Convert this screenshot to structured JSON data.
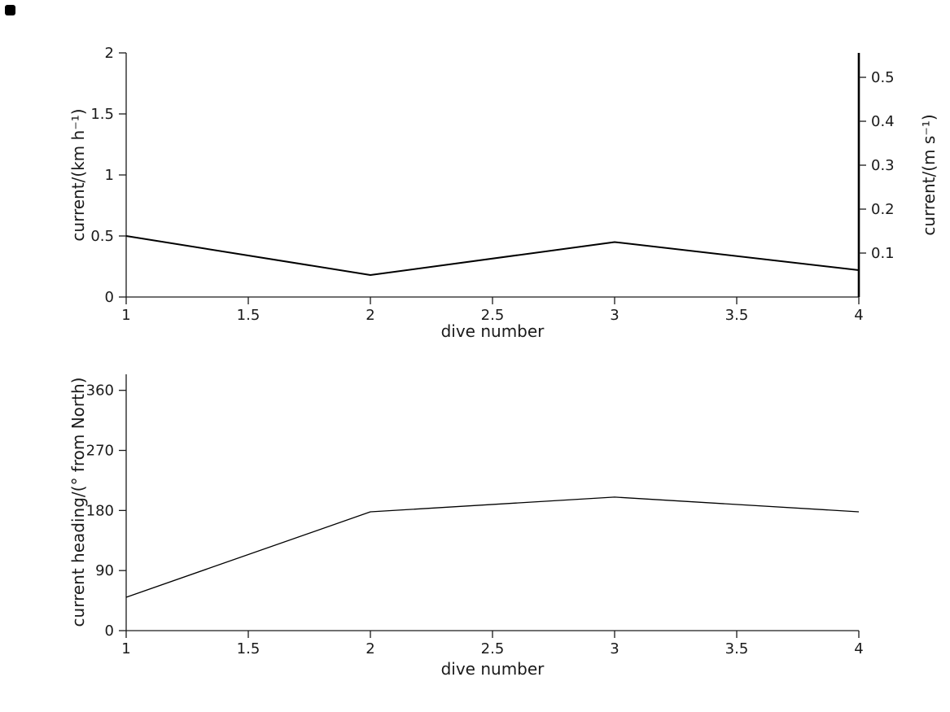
{
  "figure": {
    "background": "#ffffff",
    "text_color": "#1a1a1a",
    "axis_color": "#1a1a1a"
  },
  "chart_data": [
    {
      "type": "line",
      "title": "",
      "xlabel": "dive number",
      "ylabel": "current/(km h⁻¹)",
      "ylabel_right": "current/(m s⁻¹)",
      "x": [
        1,
        2,
        3,
        4
      ],
      "values": [
        0.5,
        0.18,
        0.45,
        0.22
      ],
      "values_right_axis_m_s": [
        0.14,
        0.05,
        0.13,
        0.06
      ],
      "xlim": [
        1,
        4
      ],
      "ylim": [
        0,
        2
      ],
      "ylim_right": [
        0,
        0.5556
      ],
      "xticks": [
        1,
        1.5,
        2,
        2.5,
        3,
        3.5,
        4
      ],
      "yticks": [
        0,
        0.5,
        1,
        1.5,
        2
      ],
      "yticks_right": [
        0.1,
        0.2,
        0.3,
        0.4,
        0.5
      ],
      "grid": false,
      "line_color": "#000000"
    },
    {
      "type": "line",
      "title": "",
      "xlabel": "dive number",
      "ylabel": "current heading/(° from North)",
      "x": [
        1,
        2,
        3,
        4
      ],
      "values": [
        50,
        178,
        200,
        178
      ],
      "xlim": [
        1,
        4
      ],
      "ylim": [
        0,
        384
      ],
      "xticks": [
        1,
        1.5,
        2,
        2.5,
        3,
        3.5,
        4
      ],
      "yticks": [
        0,
        90,
        180,
        270,
        360
      ],
      "grid": false,
      "line_color": "#000000"
    }
  ]
}
